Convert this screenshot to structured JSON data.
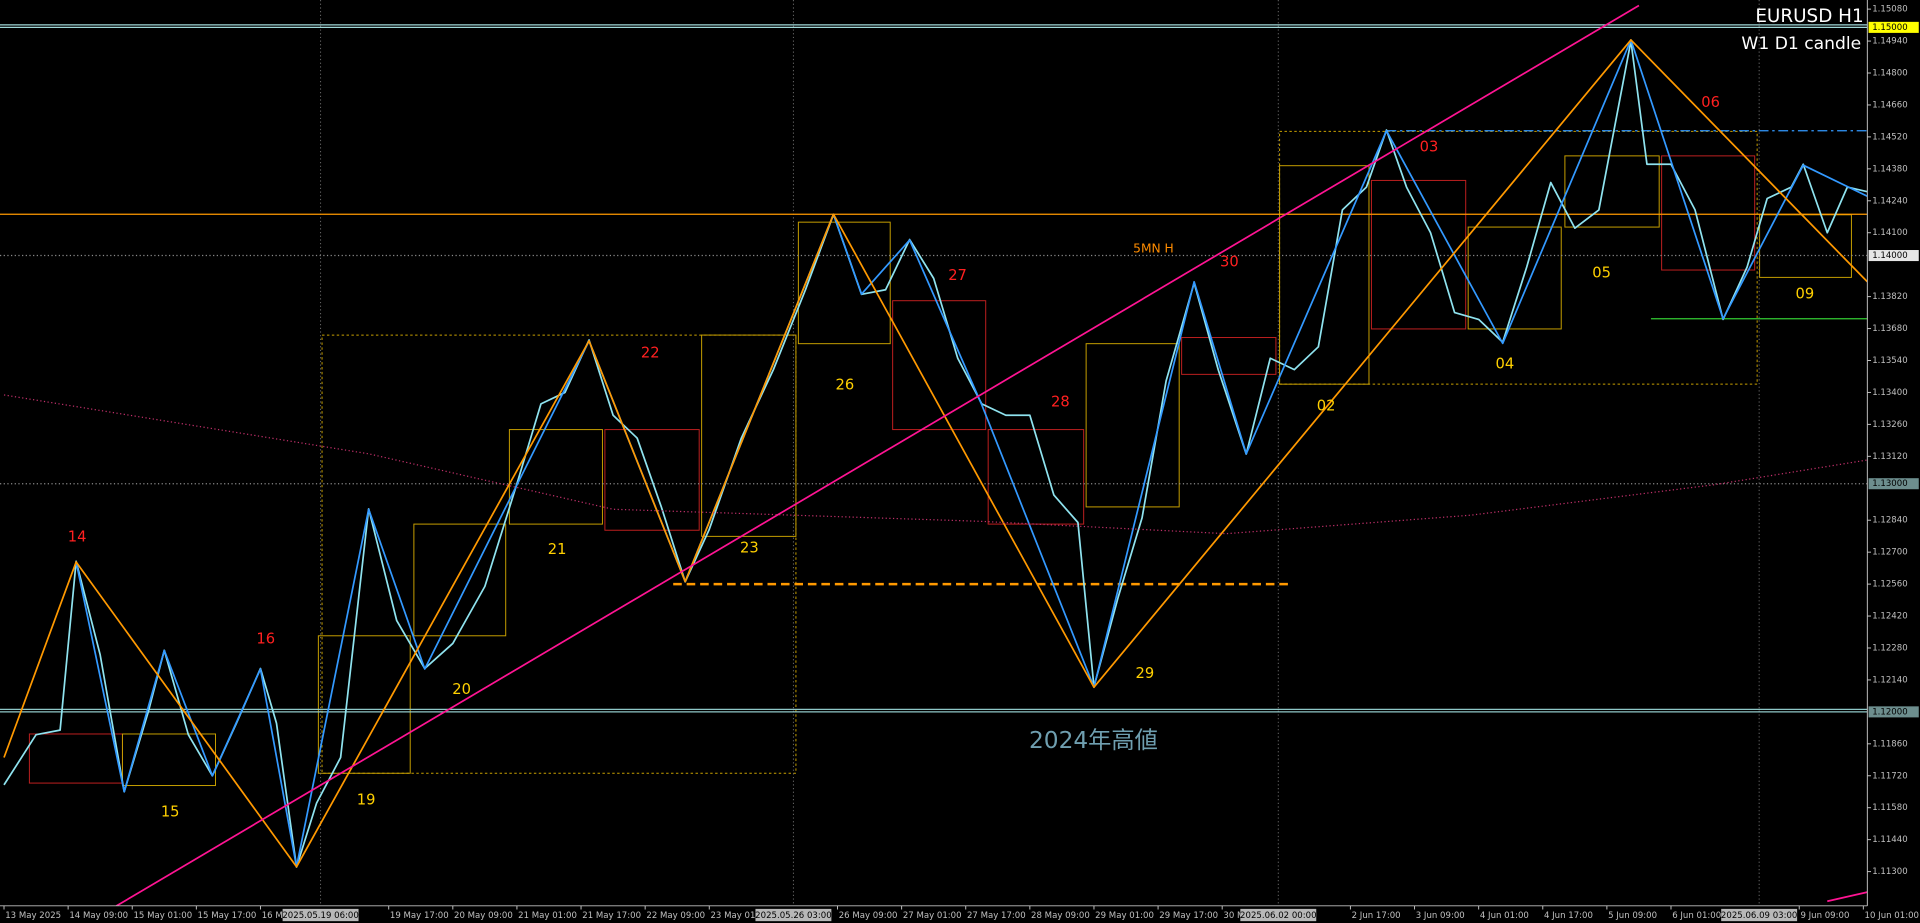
{
  "chart_data": {
    "type": "line",
    "title": "EURUSD H1",
    "subtitle": "W1 D1 candle",
    "xlim": [
      -1,
      465
    ],
    "ylim": [
      1.1115,
      1.1512
    ],
    "yticks": [
      {
        "value": 1.1508,
        "label": "1.15080"
      },
      {
        "value": 1.1494,
        "label": "1.14940"
      },
      {
        "value": 1.148,
        "label": "1.14800"
      },
      {
        "value": 1.1466,
        "label": "1.14660"
      },
      {
        "value": 1.1452,
        "label": "1.14520"
      },
      {
        "value": 1.1438,
        "label": "1.14380"
      },
      {
        "value": 1.1424,
        "label": "1.14240"
      },
      {
        "value": 1.141,
        "label": "1.14100"
      },
      {
        "value": 1.1382,
        "label": "1.13820"
      },
      {
        "value": 1.1368,
        "label": "1.13680"
      },
      {
        "value": 1.1354,
        "label": "1.13540"
      },
      {
        "value": 1.134,
        "label": "1.13400"
      },
      {
        "value": 1.1326,
        "label": "1.13260"
      },
      {
        "value": 1.1312,
        "label": "1.13120"
      },
      {
        "value": 1.1284,
        "label": "1.12840"
      },
      {
        "value": 1.127,
        "label": "1.12700"
      },
      {
        "value": 1.1256,
        "label": "1.12560"
      },
      {
        "value": 1.1242,
        "label": "1.12420"
      },
      {
        "value": 1.1228,
        "label": "1.12280"
      },
      {
        "value": 1.1214,
        "label": "1.12140"
      },
      {
        "value": 1.1186,
        "label": "1.11860"
      },
      {
        "value": 1.1172,
        "label": "1.11720"
      },
      {
        "value": 1.1158,
        "label": "1.11580"
      },
      {
        "value": 1.1144,
        "label": "1.11440"
      },
      {
        "value": 1.113,
        "label": "1.11300"
      }
    ],
    "xticks": [
      {
        "value": 0,
        "label": "13 May 2025"
      },
      {
        "value": 16,
        "label": "14 May 09:00"
      },
      {
        "value": 32,
        "label": "15 May 01:00"
      },
      {
        "value": 48,
        "label": "15 May 17:00"
      },
      {
        "value": 64,
        "label": "16 M"
      },
      {
        "value": 96,
        "label": "19 May 17:00"
      },
      {
        "value": 112,
        "label": "20 May 09:00"
      },
      {
        "value": 128,
        "label": "21 May 01:00"
      },
      {
        "value": 144,
        "label": "21 May 17:00"
      },
      {
        "value": 160,
        "label": "22 May 09:00"
      },
      {
        "value": 176,
        "label": "23 May 01:00"
      },
      {
        "value": 208,
        "label": "26 May 09:00"
      },
      {
        "value": 224,
        "label": "27 May 01:00"
      },
      {
        "value": 240,
        "label": "27 May 17:00"
      },
      {
        "value": 256,
        "label": "28 May 09:00"
      },
      {
        "value": 272,
        "label": "29 May 01:00"
      },
      {
        "value": 288,
        "label": "29 May 17:00"
      },
      {
        "value": 304,
        "label": "30 M"
      },
      {
        "value": 336,
        "label": "2 Jun 17:00"
      },
      {
        "value": 352,
        "label": "3 Jun 09:00"
      },
      {
        "value": 368,
        "label": "4 Jun 01:00"
      },
      {
        "value": 384,
        "label": "4 Jun 17:00"
      },
      {
        "value": 400,
        "label": "5 Jun 09:00"
      },
      {
        "value": 416,
        "label": "6 Jun 01:00"
      },
      {
        "value": 448,
        "label": "9 Jun 09:00"
      },
      {
        "value": 464,
        "label": "10 Jun 01:00"
      }
    ],
    "x_markers": [
      {
        "value": 79,
        "label": "2025.05.19 06:00"
      },
      {
        "value": 197,
        "label": "2025.05.26 03:00"
      },
      {
        "value": 318,
        "label": "2025.06.02 00:00"
      },
      {
        "value": 438,
        "label": "2025.06.09 03:00"
      }
    ],
    "series": [
      {
        "color": "#8fe3ef",
        "style": "solid",
        "x": [
          0,
          8,
          14,
          18,
          24,
          30,
          36,
          40,
          46,
          52,
          58,
          64,
          68,
          73,
          78,
          84,
          91,
          98,
          105,
          112,
          120,
          128,
          134,
          140,
          146,
          152,
          158,
          164,
          170,
          176,
          184,
          192,
          200,
          207,
          214,
          220,
          226,
          232,
          238,
          244,
          250,
          256,
          262,
          268,
          272,
          278,
          284,
          290,
          297,
          303,
          310,
          316,
          322,
          328,
          334,
          340,
          345,
          350,
          356,
          362,
          368,
          374,
          380,
          386,
          392,
          398,
          406,
          410,
          416,
          422,
          429,
          435,
          440,
          446,
          449,
          455,
          460,
          465
        ],
        "values": [
          1.1168,
          1.119,
          1.1192,
          1.1266,
          1.1225,
          1.1165,
          1.12,
          1.1227,
          1.119,
          1.1172,
          1.1195,
          1.1219,
          1.1195,
          1.1132,
          1.116,
          1.118,
          1.1289,
          1.124,
          1.1219,
          1.123,
          1.1255,
          1.13,
          1.1335,
          1.134,
          1.1363,
          1.133,
          1.132,
          1.129,
          1.1257,
          1.128,
          1.132,
          1.135,
          1.1385,
          1.1418,
          1.1383,
          1.1385,
          1.1407,
          1.139,
          1.1355,
          1.1335,
          1.133,
          1.133,
          1.1295,
          1.1283,
          1.1211,
          1.125,
          1.1285,
          1.1345,
          1.1388,
          1.135,
          1.1313,
          1.1355,
          1.135,
          1.136,
          1.142,
          1.143,
          1.1455,
          1.143,
          1.141,
          1.1375,
          1.1372,
          1.1362,
          1.1395,
          1.1432,
          1.1412,
          1.142,
          1.1494,
          1.144,
          1.144,
          1.142,
          1.1372,
          1.1395,
          1.1425,
          1.143,
          1.144,
          1.141,
          1.143,
          1.1428
        ]
      },
      {
        "color": "#3399ff",
        "style": "solid",
        "x": [
          18,
          30,
          40,
          52,
          64,
          73,
          91,
          105,
          146,
          170,
          207,
          214,
          226,
          244,
          272,
          297,
          310,
          345,
          374,
          406,
          429,
          449,
          465
        ],
        "values": [
          1.12657,
          1.1165,
          1.12269,
          1.1172,
          1.12188,
          1.11321,
          1.12888,
          1.12188,
          1.13626,
          1.12571,
          1.14181,
          1.13831,
          1.14068,
          1.13346,
          1.12108,
          1.13885,
          1.13131,
          1.14547,
          1.13615,
          1.14945,
          1.13723,
          1.14396,
          1.1426
        ]
      },
      {
        "color": "#ff9900",
        "style": "solid",
        "x": [
          0,
          18,
          73,
          146,
          170,
          207,
          272,
          406,
          465
        ],
        "values": [
          1.118,
          1.12657,
          1.11321,
          1.13626,
          1.12571,
          1.14181,
          1.12108,
          1.14945,
          1.13885
        ]
      },
      {
        "color": "#ff1493",
        "style": "solid",
        "x": [
          28,
          408
        ],
        "values": [
          1.11149,
          1.15096
        ]
      },
      {
        "color": "#ff1493",
        "style": "solid",
        "x": [
          455,
          465
        ],
        "values": [
          1.1117,
          1.1121
        ]
      },
      {
        "color": "#c0306a",
        "style": "dotted",
        "x": [
          0,
          91,
          152,
          244,
          305,
          366,
          427,
          465
        ],
        "values": [
          1.13389,
          1.13131,
          1.12888,
          1.12835,
          1.12781,
          1.12862,
          1.12996,
          1.13104
        ]
      }
    ],
    "levels": [
      {
        "value": 1.15,
        "label": "1.15000",
        "color": "#a0d8d8",
        "style": "double",
        "label_bg": "#ffff00"
      },
      {
        "value": 1.14,
        "label": "1.14000",
        "color": "#8a8a8a",
        "style": "dotted",
        "label_bg": "#e6e6e6"
      },
      {
        "value": 1.13,
        "label": "1.13000",
        "color": "#8a8a8a",
        "style": "dotted",
        "label_bg": "#6d8e8e"
      },
      {
        "value": 1.12,
        "label": "1.12000",
        "color": "#8fc8c8",
        "style": "double",
        "label_bg": "#6d8e8e"
      },
      {
        "value": 1.14181,
        "color": "#ff9900",
        "style": "solid"
      },
      {
        "value": 1.14547,
        "x": [
          345,
          465
        ],
        "color": "#3399ff",
        "style": "dashdot"
      },
      {
        "value": 1.13723,
        "x": [
          411,
          465
        ],
        "color": "#33cc33",
        "style": "solid"
      },
      {
        "value": 1.1256,
        "x": [
          167,
          321
        ],
        "color": "#ff9900",
        "style": "dashed"
      }
    ],
    "annotations": [
      {
        "text": "14",
        "color": "#ff2020"
      },
      {
        "text": "16",
        "color": "#ff2020"
      },
      {
        "text": "22",
        "color": "#ff2020"
      },
      {
        "text": "27",
        "color": "#ff2020"
      },
      {
        "text": "28",
        "color": "#ff2020"
      },
      {
        "text": "30",
        "color": "#ff2020"
      },
      {
        "text": "03",
        "color": "#ff2020"
      },
      {
        "text": "06",
        "color": "#ff2020"
      },
      {
        "text": "15",
        "color": "#ffd000"
      },
      {
        "text": "19",
        "color": "#ffd000"
      },
      {
        "text": "20",
        "color": "#ffd000"
      },
      {
        "text": "21",
        "color": "#ffd000"
      },
      {
        "text": "23",
        "color": "#ffd000"
      },
      {
        "text": "26",
        "color": "#ffd000"
      },
      {
        "text": "29",
        "color": "#ffd000"
      },
      {
        "text": "02",
        "color": "#ffd000"
      },
      {
        "text": "04",
        "color": "#ffd000"
      },
      {
        "text": "05",
        "color": "#ffd000"
      },
      {
        "text": "09",
        "color": "#ffd000"
      },
      {
        "text": "5MN H",
        "color": "#ff8c00"
      },
      {
        "text": "2024年高値",
        "color": "#6f9fb0"
      }
    ]
  }
}
